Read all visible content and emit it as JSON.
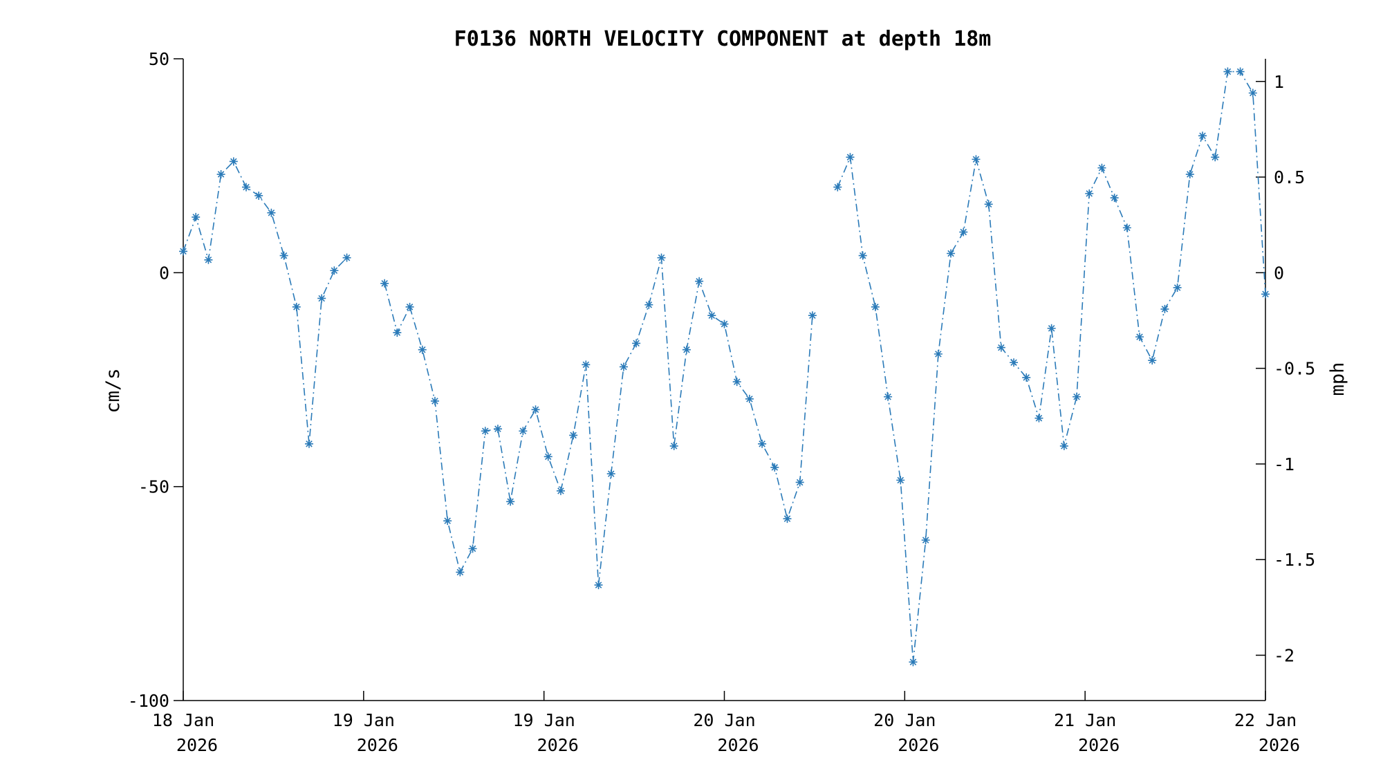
{
  "chart_data": {
    "type": "line",
    "title": "F0136 NORTH VELOCITY COMPONENT at depth 18m",
    "ylabel": "cm/s",
    "y2label": "mph",
    "ylim": [
      -100,
      50
    ],
    "yticks": [
      "50",
      "0",
      "-50",
      "-100"
    ],
    "y2ticks": [
      "1",
      "0.5",
      "0",
      "-0.5",
      "-1",
      "-1.5",
      "-2"
    ],
    "xticks": [
      {
        "day": "18 Jan",
        "year": "2026"
      },
      {
        "day": "19 Jan",
        "year": "2026"
      },
      {
        "day": "19 Jan",
        "year": "2026"
      },
      {
        "day": "20 Jan",
        "year": "2026"
      },
      {
        "day": "20 Jan",
        "year": "2026"
      },
      {
        "day": "21 Jan",
        "year": "2026"
      },
      {
        "day": "22 Jan",
        "year": "2026"
      }
    ],
    "marker": "asterisk",
    "line_style": "dash-dot",
    "color": "#2a7ab8",
    "grid": false,
    "series": [
      {
        "segments": [
          [
            5,
            13,
            3,
            23,
            26,
            20,
            18,
            14,
            4,
            -8,
            -40,
            -6,
            0.5,
            3.5
          ],
          [
            -2.5,
            -14,
            -8,
            -18,
            -30,
            -58,
            -70,
            -64.5,
            -37,
            -36.5,
            -53.5,
            -37,
            -32,
            -43,
            -51,
            -38,
            -21.5,
            -73,
            -47,
            -22,
            -16.5,
            -7.5,
            3.5,
            -40.5,
            -18,
            -2,
            -10,
            -12,
            -25.5,
            -29.5,
            -40,
            -45.5,
            -57.5,
            -49,
            -10
          ],
          [
            20,
            27,
            4,
            -8,
            -29,
            -48.5,
            -91,
            -62.5,
            -19,
            4.5,
            9.5,
            26.5,
            16,
            -17.5,
            -21,
            -24.5,
            -34,
            -13,
            -40.5,
            -29,
            18.5,
            24.5,
            17.5,
            10.5,
            -15,
            -20.5,
            -8.5,
            -3.5,
            23,
            32,
            27,
            47,
            47,
            42,
            -5
          ]
        ]
      }
    ]
  }
}
